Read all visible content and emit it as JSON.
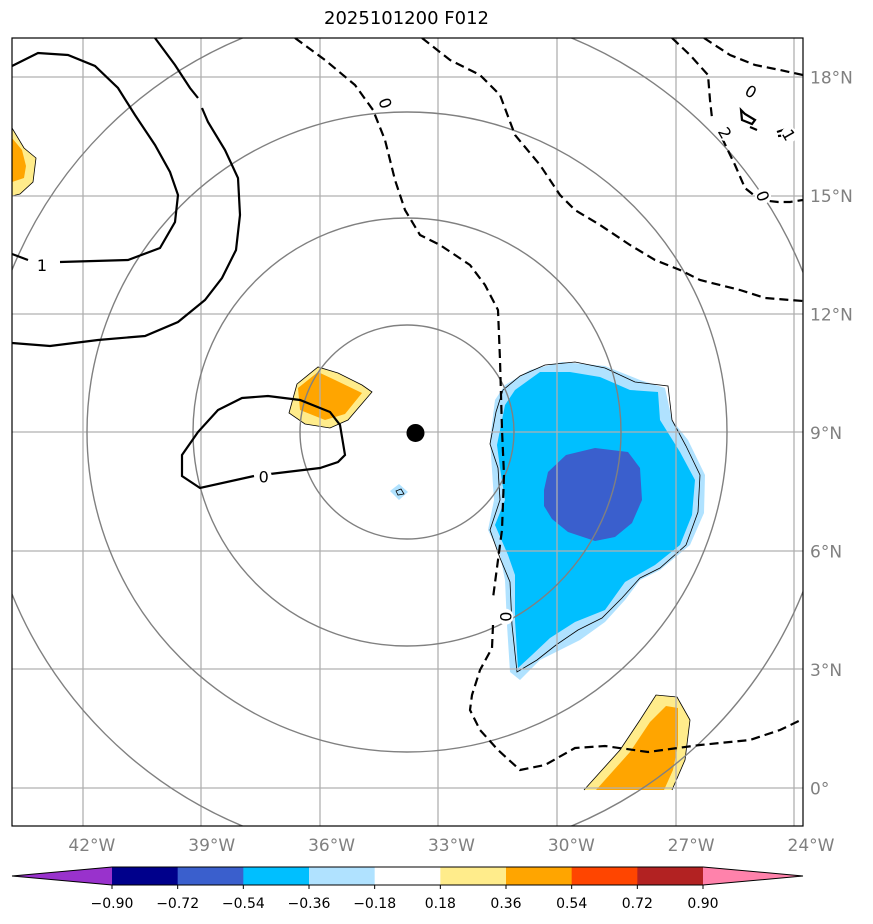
{
  "title": "2025101200 F012",
  "map": {
    "lon_range": [
      -44,
      -24.2
    ],
    "lat_range": [
      -0.95,
      19
    ],
    "lon_ticks": [
      {
        "value": -42,
        "label": "42°W"
      },
      {
        "value": -39,
        "label": "39°W"
      },
      {
        "value": -36,
        "label": "36°W"
      },
      {
        "value": -33,
        "label": "33°W"
      },
      {
        "value": -30,
        "label": "30°W"
      },
      {
        "value": -27,
        "label": "27°W"
      },
      {
        "value": -24,
        "label": "24°W"
      }
    ],
    "lat_ticks": [
      {
        "value": 18,
        "label": "18°N"
      },
      {
        "value": 15,
        "label": "15°N"
      },
      {
        "value": 12,
        "label": "12°N"
      },
      {
        "value": 9,
        "label": "9°N"
      },
      {
        "value": 6,
        "label": "6°N"
      },
      {
        "value": 3,
        "label": "3°N"
      },
      {
        "value": 0,
        "label": "0°"
      }
    ],
    "center": {
      "lon": -33.9,
      "lat": 9.0
    },
    "range_rings_deg": [
      2.7,
      5.4,
      8.1,
      10.8
    ]
  },
  "contour_labels": [
    {
      "text": "0",
      "lon": -34.65,
      "lat": 17.35,
      "rotate": 70
    },
    {
      "text": "1",
      "lon": -43.25,
      "lat": 13.25,
      "rotate": 0
    },
    {
      "text": "0",
      "lon": -37.7,
      "lat": 7.9,
      "rotate": 0
    },
    {
      "text": "0",
      "lon": -31.65,
      "lat": 4.35,
      "rotate": -90
    },
    {
      "text": "2",
      "lon": -26.15,
      "lat": 16.6,
      "rotate": 60
    },
    {
      "text": "0",
      "lon": -25.2,
      "lat": 15.0,
      "rotate": 70
    },
    {
      "text": "0",
      "lon": -25.5,
      "lat": 17.65,
      "rotate": 30
    },
    {
      "text": "1",
      "lon": -24.55,
      "lat": 16.55,
      "rotate": 60
    }
  ],
  "colorbar": {
    "colors": [
      "#9932cc",
      "#00008b",
      "#3a5fcd",
      "#00bfff",
      "#b0e2ff",
      "#ffffff",
      "#ffec8b",
      "#ffa500",
      "#ff4500",
      "#b22222",
      "#ff82ab"
    ],
    "tick_labels": [
      "−0.90",
      "−0.72",
      "−0.54",
      "−0.36",
      "−0.18",
      "0.18",
      "0.36",
      "0.54",
      "0.72",
      "0.90"
    ]
  }
}
